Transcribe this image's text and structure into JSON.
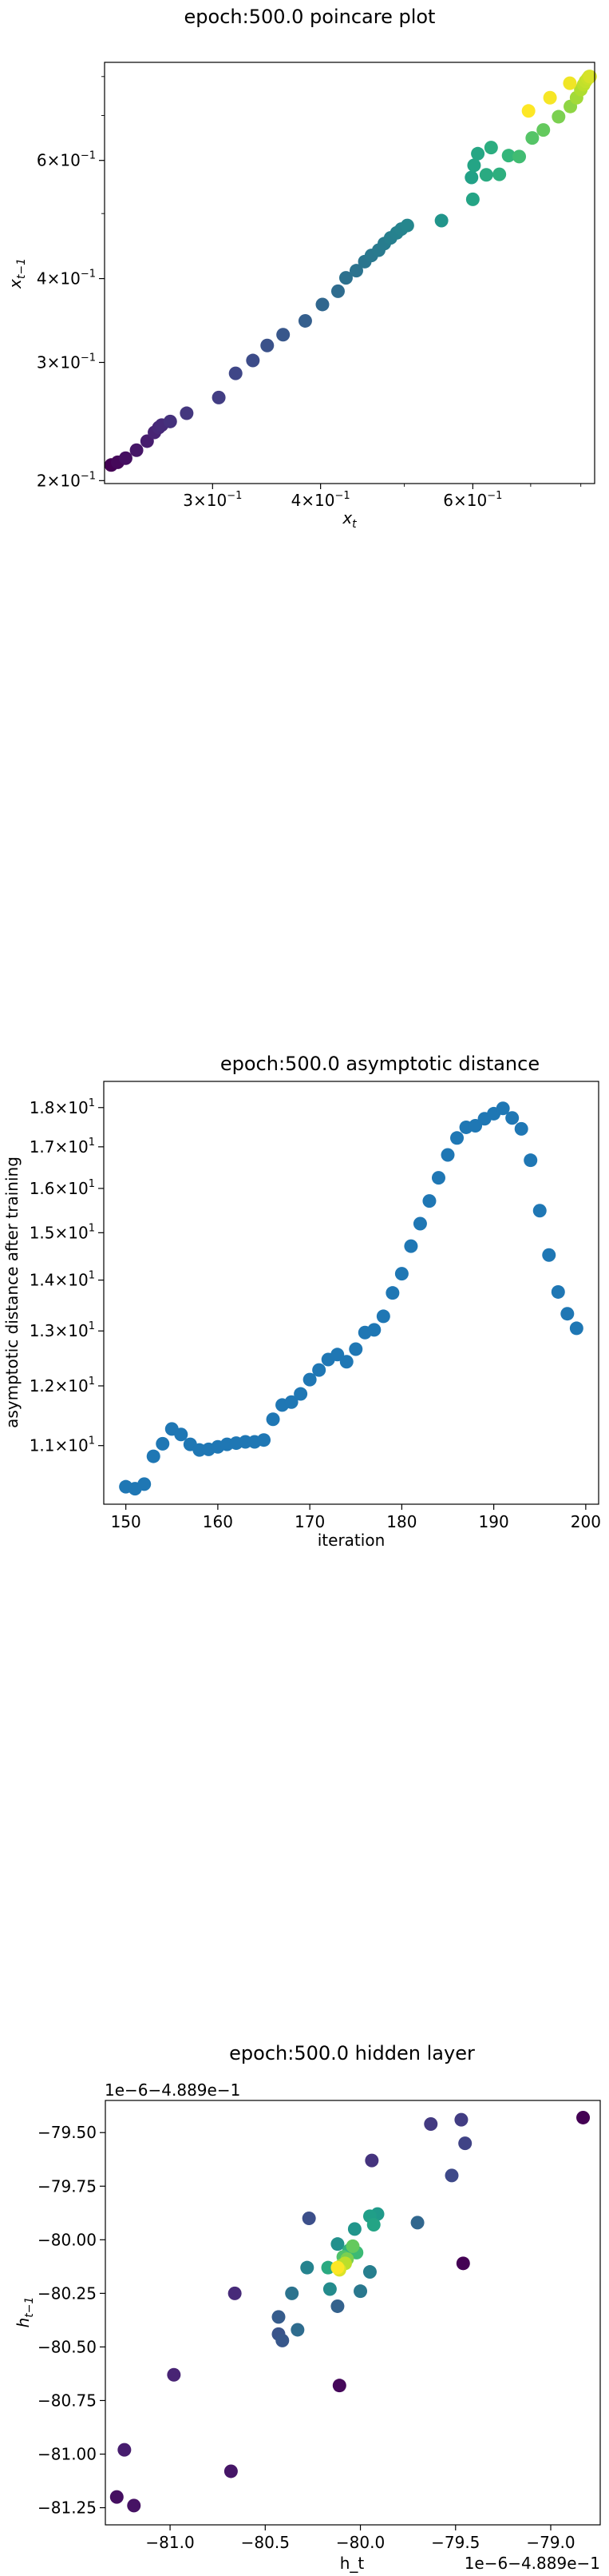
{
  "chart_data": [
    {
      "type": "scatter",
      "title": "epoch:500.0 poincare plot",
      "xlabel": "x_t",
      "ylabel": "x_{t-1}",
      "xscale": "log",
      "yscale": "log",
      "xlim": [
        0.225,
        0.83
      ],
      "ylim": [
        0.198,
        0.84
      ],
      "colormap": "viridis",
      "xticks": [
        {
          "value": 0.3,
          "base": "3",
          "exp": "-1"
        },
        {
          "value": 0.4,
          "base": "4",
          "exp": "-1"
        },
        {
          "value": 0.6,
          "base": "6",
          "exp": "-1"
        }
      ],
      "yticks": [
        {
          "value": 0.2,
          "base": "2",
          "exp": "-1"
        },
        {
          "value": 0.3,
          "base": "3",
          "exp": "-1"
        },
        {
          "value": 0.4,
          "base": "4",
          "exp": "-1"
        },
        {
          "value": 0.6,
          "base": "6",
          "exp": "-1"
        }
      ],
      "points": [
        {
          "x": 0.229,
          "y": 0.211,
          "c": 0.0
        },
        {
          "x": 0.233,
          "y": 0.213,
          "c": 0.02
        },
        {
          "x": 0.238,
          "y": 0.216,
          "c": 0.04
        },
        {
          "x": 0.245,
          "y": 0.222,
          "c": 0.06
        },
        {
          "x": 0.252,
          "y": 0.229,
          "c": 0.08
        },
        {
          "x": 0.257,
          "y": 0.236,
          "c": 0.1
        },
        {
          "x": 0.26,
          "y": 0.24,
          "c": 0.11
        },
        {
          "x": 0.262,
          "y": 0.242,
          "c": 0.12
        },
        {
          "x": 0.268,
          "y": 0.245,
          "c": 0.14
        },
        {
          "x": 0.28,
          "y": 0.252,
          "c": 0.16
        },
        {
          "x": 0.305,
          "y": 0.266,
          "c": 0.18
        },
        {
          "x": 0.319,
          "y": 0.289,
          "c": 0.21
        },
        {
          "x": 0.334,
          "y": 0.302,
          "c": 0.23
        },
        {
          "x": 0.347,
          "y": 0.318,
          "c": 0.25
        },
        {
          "x": 0.362,
          "y": 0.33,
          "c": 0.27
        },
        {
          "x": 0.384,
          "y": 0.346,
          "c": 0.3
        },
        {
          "x": 0.402,
          "y": 0.366,
          "c": 0.33
        },
        {
          "x": 0.419,
          "y": 0.383,
          "c": 0.35
        },
        {
          "x": 0.428,
          "y": 0.401,
          "c": 0.37
        },
        {
          "x": 0.44,
          "y": 0.411,
          "c": 0.38
        },
        {
          "x": 0.45,
          "y": 0.424,
          "c": 0.39
        },
        {
          "x": 0.458,
          "y": 0.433,
          "c": 0.4
        },
        {
          "x": 0.467,
          "y": 0.441,
          "c": 0.41
        },
        {
          "x": 0.474,
          "y": 0.451,
          "c": 0.42
        },
        {
          "x": 0.482,
          "y": 0.46,
          "c": 0.43
        },
        {
          "x": 0.49,
          "y": 0.468,
          "c": 0.44
        },
        {
          "x": 0.496,
          "y": 0.474,
          "c": 0.45
        },
        {
          "x": 0.504,
          "y": 0.48,
          "c": 0.46
        },
        {
          "x": 0.552,
          "y": 0.488,
          "c": 0.52
        },
        {
          "x": 0.6,
          "y": 0.525,
          "c": 0.58
        },
        {
          "x": 0.598,
          "y": 0.566,
          "c": 0.57
        },
        {
          "x": 0.602,
          "y": 0.59,
          "c": 0.58
        },
        {
          "x": 0.608,
          "y": 0.614,
          "c": 0.59
        },
        {
          "x": 0.622,
          "y": 0.571,
          "c": 0.61
        },
        {
          "x": 0.63,
          "y": 0.627,
          "c": 0.62
        },
        {
          "x": 0.644,
          "y": 0.572,
          "c": 0.63
        },
        {
          "x": 0.66,
          "y": 0.61,
          "c": 0.66
        },
        {
          "x": 0.679,
          "y": 0.608,
          "c": 0.69
        },
        {
          "x": 0.703,
          "y": 0.648,
          "c": 0.73
        },
        {
          "x": 0.724,
          "y": 0.666,
          "c": 0.76
        },
        {
          "x": 0.754,
          "y": 0.697,
          "c": 0.8
        },
        {
          "x": 0.778,
          "y": 0.722,
          "c": 0.83
        },
        {
          "x": 0.791,
          "y": 0.744,
          "c": 0.86
        },
        {
          "x": 0.8,
          "y": 0.765,
          "c": 0.88
        },
        {
          "x": 0.806,
          "y": 0.778,
          "c": 0.9
        },
        {
          "x": 0.81,
          "y": 0.787,
          "c": 0.91
        },
        {
          "x": 0.815,
          "y": 0.795,
          "c": 0.92
        },
        {
          "x": 0.818,
          "y": 0.8,
          "c": 0.93
        },
        {
          "x": 0.82,
          "y": 0.8,
          "c": 0.94
        },
        {
          "x": 0.696,
          "y": 0.711,
          "c": 1.0
        },
        {
          "x": 0.737,
          "y": 0.744,
          "c": 0.99
        },
        {
          "x": 0.777,
          "y": 0.782,
          "c": 0.98
        }
      ]
    },
    {
      "type": "scatter",
      "title": "epoch:500.0 asymptotic distance",
      "xlabel": "iteration",
      "ylabel": "asymptotic distance after training",
      "xscale": "linear",
      "yscale": "log",
      "xlim": [
        147.6,
        201.4
      ],
      "ylim": [
        10.1,
        18.7
      ],
      "xticks": [
        150,
        160,
        170,
        180,
        190,
        200
      ],
      "yticks": [
        {
          "value": 11,
          "base": "1.1",
          "exp": "1"
        },
        {
          "value": 12,
          "base": "1.2",
          "exp": "1"
        },
        {
          "value": 13,
          "base": "1.3",
          "exp": "1"
        },
        {
          "value": 14,
          "base": "1.4",
          "exp": "1"
        },
        {
          "value": 15,
          "base": "1.5",
          "exp": "1"
        },
        {
          "value": 16,
          "base": "1.6",
          "exp": "1"
        },
        {
          "value": 17,
          "base": "1.7",
          "exp": "1"
        },
        {
          "value": 18,
          "base": "1.8",
          "exp": "1"
        }
      ],
      "color": "#1f77b4",
      "x": [
        150,
        151,
        152,
        153,
        154,
        155,
        156,
        157,
        158,
        159,
        160,
        161,
        162,
        163,
        164,
        165,
        166,
        167,
        168,
        169,
        170,
        171,
        172,
        173,
        174,
        175,
        176,
        177,
        178,
        179,
        180,
        181,
        182,
        183,
        184,
        185,
        186,
        187,
        188,
        189,
        190,
        191,
        192,
        193,
        194,
        195,
        196,
        197,
        198,
        199
      ],
      "y": [
        10.36,
        10.33,
        10.4,
        10.83,
        11.03,
        11.27,
        11.18,
        11.02,
        10.93,
        10.94,
        10.98,
        11.02,
        11.04,
        11.06,
        11.06,
        11.09,
        11.43,
        11.67,
        11.72,
        11.86,
        12.11,
        12.28,
        12.47,
        12.56,
        12.43,
        12.66,
        12.97,
        13.02,
        13.28,
        13.74,
        14.13,
        14.71,
        15.2,
        15.71,
        16.25,
        16.8,
        17.22,
        17.49,
        17.53,
        17.71,
        17.84,
        17.98,
        17.73,
        17.45,
        16.67,
        15.49,
        14.52,
        13.76,
        13.33,
        13.05
      ]
    },
    {
      "type": "scatter",
      "title": "epoch:500.0 hidden layer",
      "xlabel": "h_t",
      "ylabel": "h_{t-1}",
      "x_offset_text": "1e−6−4.889e−1",
      "y_offset_text": "1e−6−4.889e−1",
      "xlim": [
        -81.34,
        -78.74
      ],
      "ylim": [
        -81.33,
        -79.35
      ],
      "xticks": [
        -81.0,
        -80.5,
        -80.0,
        -79.5,
        -79.0
      ],
      "xtick_labels": [
        "−81.0",
        "−80.5",
        "−80.0",
        "−79.5",
        "−79.0"
      ],
      "yticks": [
        -79.5,
        -79.75,
        -80.0,
        -80.25,
        -80.5,
        -80.75,
        -81.0,
        -81.25
      ],
      "ytick_labels": [
        "−79.50",
        "−79.75",
        "−80.00",
        "−80.25",
        "−80.50",
        "−80.75",
        "−81.00",
        "−81.25"
      ],
      "colormap": "viridis",
      "points": [
        {
          "x": -78.83,
          "y": -79.43,
          "c": 0.0
        },
        {
          "x": -79.46,
          "y": -80.11,
          "c": 0.0
        },
        {
          "x": -80.11,
          "y": -80.68,
          "c": 0.02
        },
        {
          "x": -81.28,
          "y": -81.2,
          "c": 0.04
        },
        {
          "x": -81.19,
          "y": -81.24,
          "c": 0.05
        },
        {
          "x": -80.68,
          "y": -81.08,
          "c": 0.06
        },
        {
          "x": -81.24,
          "y": -80.98,
          "c": 0.08
        },
        {
          "x": -80.98,
          "y": -80.63,
          "c": 0.1
        },
        {
          "x": -80.66,
          "y": -80.25,
          "c": 0.12
        },
        {
          "x": -79.94,
          "y": -79.63,
          "c": 0.15
        },
        {
          "x": -79.63,
          "y": -79.46,
          "c": 0.17
        },
        {
          "x": -79.47,
          "y": -79.44,
          "c": 0.18
        },
        {
          "x": -79.45,
          "y": -79.55,
          "c": 0.2
        },
        {
          "x": -79.52,
          "y": -79.7,
          "c": 0.22
        },
        {
          "x": -80.27,
          "y": -79.9,
          "c": 0.24
        },
        {
          "x": -80.43,
          "y": -80.44,
          "c": 0.26
        },
        {
          "x": -80.41,
          "y": -80.47,
          "c": 0.27
        },
        {
          "x": -80.43,
          "y": -80.36,
          "c": 0.29
        },
        {
          "x": -80.12,
          "y": -80.31,
          "c": 0.31
        },
        {
          "x": -79.7,
          "y": -79.92,
          "c": 0.33
        },
        {
          "x": -80.33,
          "y": -80.42,
          "c": 0.35
        },
        {
          "x": -80.36,
          "y": -80.25,
          "c": 0.38
        },
        {
          "x": -80.0,
          "y": -80.24,
          "c": 0.4
        },
        {
          "x": -79.95,
          "y": -80.15,
          "c": 0.43
        },
        {
          "x": -80.28,
          "y": -80.13,
          "c": 0.45
        },
        {
          "x": -80.16,
          "y": -80.23,
          "c": 0.48
        },
        {
          "x": -80.12,
          "y": -80.02,
          "c": 0.5
        },
        {
          "x": -80.03,
          "y": -79.95,
          "c": 0.52
        },
        {
          "x": -79.91,
          "y": -79.88,
          "c": 0.54
        },
        {
          "x": -79.95,
          "y": -79.89,
          "c": 0.56
        },
        {
          "x": -79.93,
          "y": -79.93,
          "c": 0.58
        },
        {
          "x": -80.17,
          "y": -80.13,
          "c": 0.61
        },
        {
          "x": -80.06,
          "y": -80.05,
          "c": 0.64
        },
        {
          "x": -80.02,
          "y": -80.06,
          "c": 0.68
        },
        {
          "x": -80.09,
          "y": -80.08,
          "c": 0.72
        },
        {
          "x": -80.04,
          "y": -80.03,
          "c": 0.76
        },
        {
          "x": -80.07,
          "y": -80.09,
          "c": 0.8
        },
        {
          "x": -80.1,
          "y": -80.12,
          "c": 0.85
        },
        {
          "x": -80.08,
          "y": -80.11,
          "c": 0.9
        },
        {
          "x": -80.11,
          "y": -80.14,
          "c": 0.95
        },
        {
          "x": -80.12,
          "y": -80.13,
          "c": 1.0
        }
      ]
    }
  ]
}
